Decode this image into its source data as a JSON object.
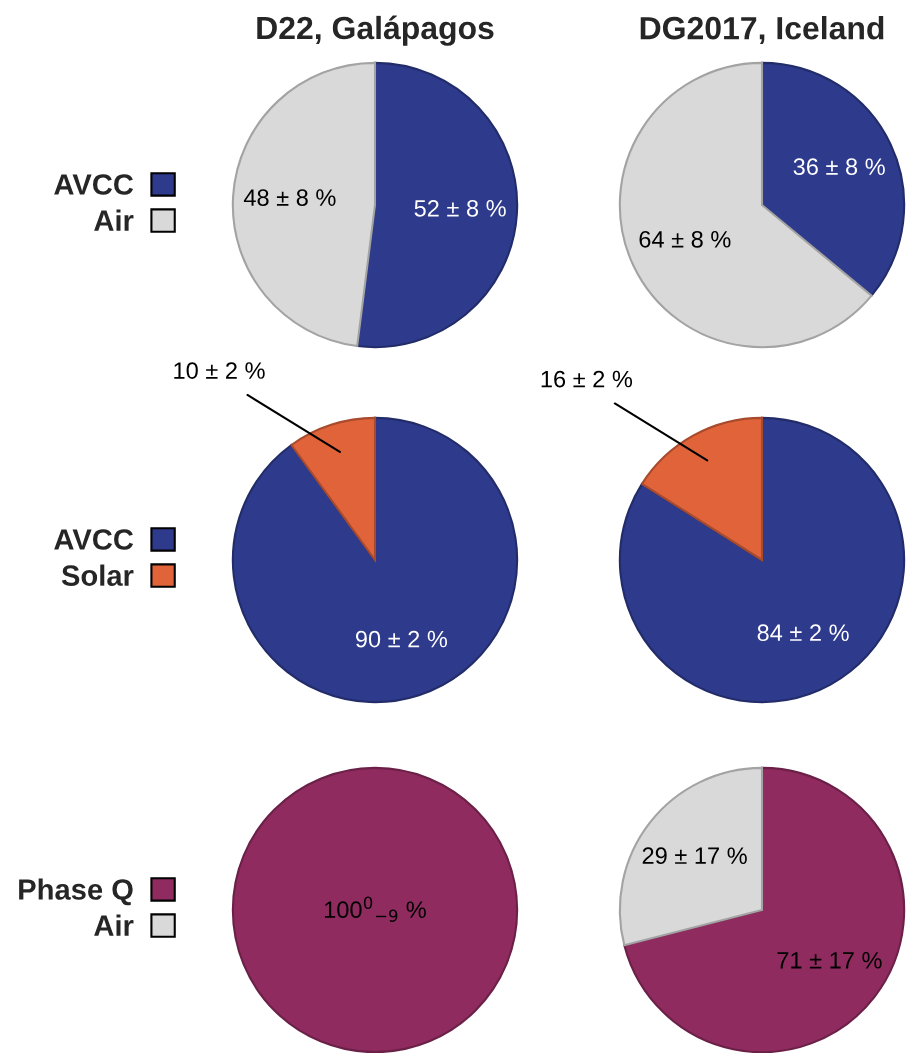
{
  "chart_data": [
    {
      "type": "pie",
      "title": "D22, Galápagos",
      "categories": [
        "AVCC",
        "Air"
      ],
      "values": [
        52,
        48
      ],
      "colors": [
        "#2e3a8c",
        "#d9d9d9"
      ],
      "value_labels": [
        "52 ± 8 %",
        "48 ± 8 %"
      ],
      "legend": "left"
    },
    {
      "type": "pie",
      "title": "DG2017, Iceland",
      "categories": [
        null,
        null
      ],
      "values": [
        36,
        64
      ],
      "colors": [
        "#2e3a8c",
        "#d9d9d9"
      ],
      "value_labels": [
        "36 ± 8 %",
        "64 ± 8 %"
      ]
    },
    {
      "type": "pie",
      "categories": [
        "AVCC",
        "Solar"
      ],
      "values": [
        90,
        10
      ],
      "colors": [
        "#2e3a8c",
        "#e0633a"
      ],
      "value_labels": [
        "90 ± 2 %",
        "10 ± 2 %"
      ],
      "legend": "left"
    },
    {
      "type": "pie",
      "categories": [
        null,
        null
      ],
      "values": [
        84,
        16
      ],
      "colors": [
        "#2e3a8c",
        "#e0633a"
      ],
      "value_labels": [
        "84 ± 2 %",
        "16 ± 2 %"
      ]
    },
    {
      "type": "pie",
      "categories": [
        "Phase Q",
        "Air"
      ],
      "values": [
        100,
        0
      ],
      "colors": [
        "#8f2b5f",
        "#d9d9d9"
      ],
      "value_labels": [
        "100$^{0}$$_{−9}$ %",
        null
      ],
      "legend": "left"
    },
    {
      "type": "pie",
      "categories": [
        null,
        null
      ],
      "values": [
        71,
        29
      ],
      "colors": [
        "#8f2b5f",
        "#d9d9d9"
      ],
      "value_labels": [
        "71 ± 17 %",
        "29 ± 17 %"
      ]
    }
  ]
}
